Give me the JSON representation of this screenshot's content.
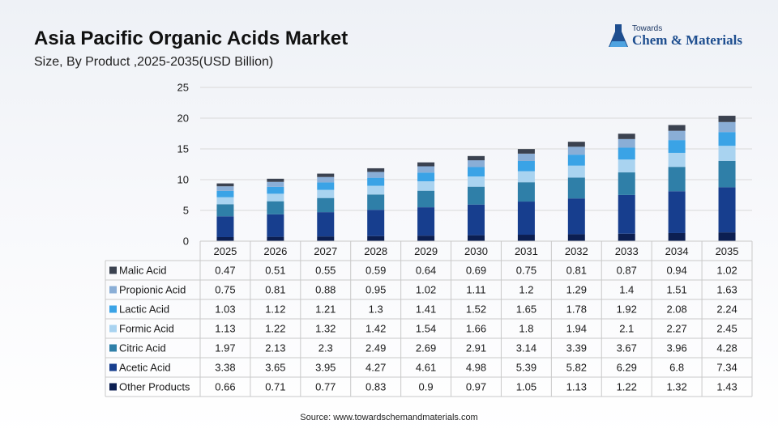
{
  "header": {
    "title": "Asia Pacific Organic Acids Market",
    "subtitle": "Size, By Product ,2025-2035(USD Billion)"
  },
  "logo": {
    "small": "Towards",
    "big": "Chem & Materials"
  },
  "source": "Source: www.towardschemandmaterials.com",
  "colors": {
    "grid": "#d9d9d9",
    "table_border": "#c9c9c9"
  },
  "chart_data": {
    "type": "bar",
    "stacked": true,
    "title": "Asia Pacific Organic Acids Market",
    "subtitle": "Size, By Product ,2025-2035(USD Billion)",
    "xlabel": "",
    "ylabel": "",
    "ylim": [
      0,
      25
    ],
    "yticks": [
      0,
      5,
      10,
      15,
      20,
      25
    ],
    "grid": true,
    "legend": "table-below",
    "categories": [
      "2025",
      "2026",
      "2027",
      "2028",
      "2029",
      "2030",
      "2031",
      "2032",
      "2033",
      "2034",
      "2035"
    ],
    "series": [
      {
        "name": "Malic Acid",
        "color": "#3b4250",
        "values": [
          0.47,
          0.51,
          0.55,
          0.59,
          0.64,
          0.69,
          0.75,
          0.81,
          0.87,
          0.94,
          1.02
        ]
      },
      {
        "name": "Propionic Acid",
        "color": "#8aaed6",
        "values": [
          0.75,
          0.81,
          0.88,
          0.95,
          1.02,
          1.11,
          1.2,
          1.29,
          1.4,
          1.51,
          1.63
        ]
      },
      {
        "name": "Lactic Acid",
        "color": "#3aa3e6",
        "values": [
          1.03,
          1.12,
          1.21,
          1.3,
          1.41,
          1.52,
          1.65,
          1.78,
          1.92,
          2.08,
          2.24
        ]
      },
      {
        "name": "Formic Acid",
        "color": "#a9d3f0",
        "values": [
          1.13,
          1.22,
          1.32,
          1.42,
          1.54,
          1.66,
          1.8,
          1.94,
          2.1,
          2.27,
          2.45
        ]
      },
      {
        "name": "Citric Acid",
        "color": "#2f7fa8",
        "values": [
          1.97,
          2.13,
          2.3,
          2.49,
          2.69,
          2.91,
          3.14,
          3.39,
          3.67,
          3.96,
          4.28
        ]
      },
      {
        "name": "Acetic Acid",
        "color": "#173e8e",
        "values": [
          3.38,
          3.65,
          3.95,
          4.27,
          4.61,
          4.98,
          5.39,
          5.82,
          6.29,
          6.8,
          7.34
        ]
      },
      {
        "name": "Other Products",
        "color": "#0c1f52",
        "values": [
          0.66,
          0.71,
          0.77,
          0.83,
          0.9,
          0.97,
          1.05,
          1.13,
          1.22,
          1.32,
          1.43
        ]
      }
    ]
  }
}
